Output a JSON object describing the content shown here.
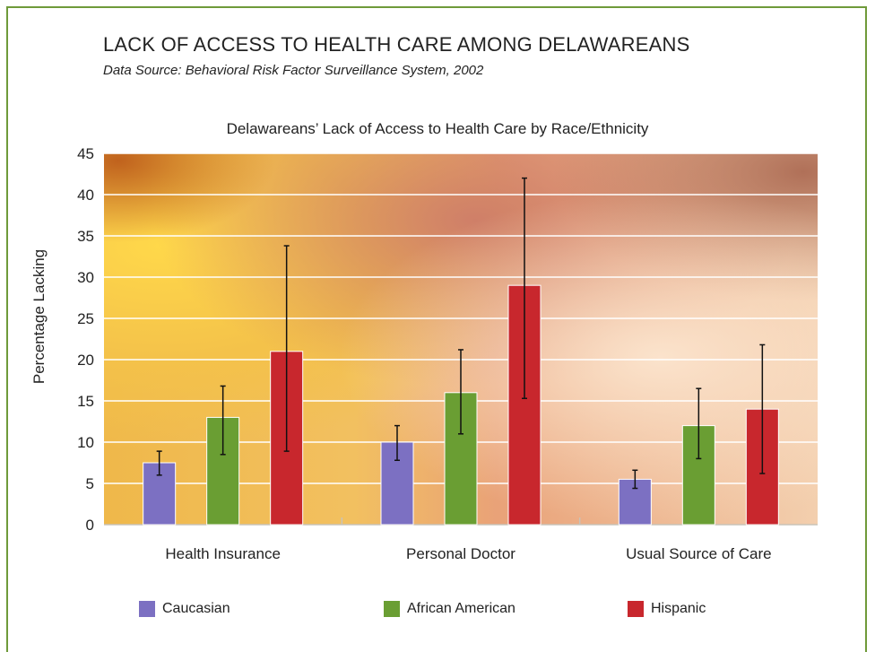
{
  "page": {
    "title": "LACK OF ACCESS TO HEALTH CARE AMONG DELAWAREANS",
    "subtitle": "Data Source: Behavioral Risk Factor Surveillance System, 2002"
  },
  "chart_data": {
    "type": "bar",
    "title": "Delawareans’ Lack of Access to Health Care by Race/Ethnicity",
    "xlabel": "",
    "ylabel": "Percentage Lacking",
    "ylim": [
      0,
      45
    ],
    "yticks": [
      0,
      5,
      10,
      15,
      20,
      25,
      30,
      35,
      40,
      45
    ],
    "grid": true,
    "legend_position": "bottom",
    "categories": [
      "Health Insurance",
      "Personal Doctor",
      "Usual Source of Care"
    ],
    "series": [
      {
        "name": "Caucasian",
        "color": "#7c70c2",
        "values": [
          7.5,
          10,
          5.5
        ],
        "error_low": [
          6.0,
          7.8,
          4.4
        ],
        "error_high": [
          8.9,
          12.0,
          6.6
        ]
      },
      {
        "name": "African American",
        "color": "#6a9e33",
        "values": [
          13,
          16,
          12
        ],
        "error_low": [
          8.5,
          11.0,
          8.0
        ],
        "error_high": [
          16.8,
          21.2,
          16.5
        ]
      },
      {
        "name": "Hispanic",
        "color": "#c8272d",
        "values": [
          21,
          29,
          14
        ],
        "error_low": [
          8.9,
          15.3,
          6.2
        ],
        "error_high": [
          33.8,
          42.0,
          21.8
        ]
      }
    ]
  }
}
